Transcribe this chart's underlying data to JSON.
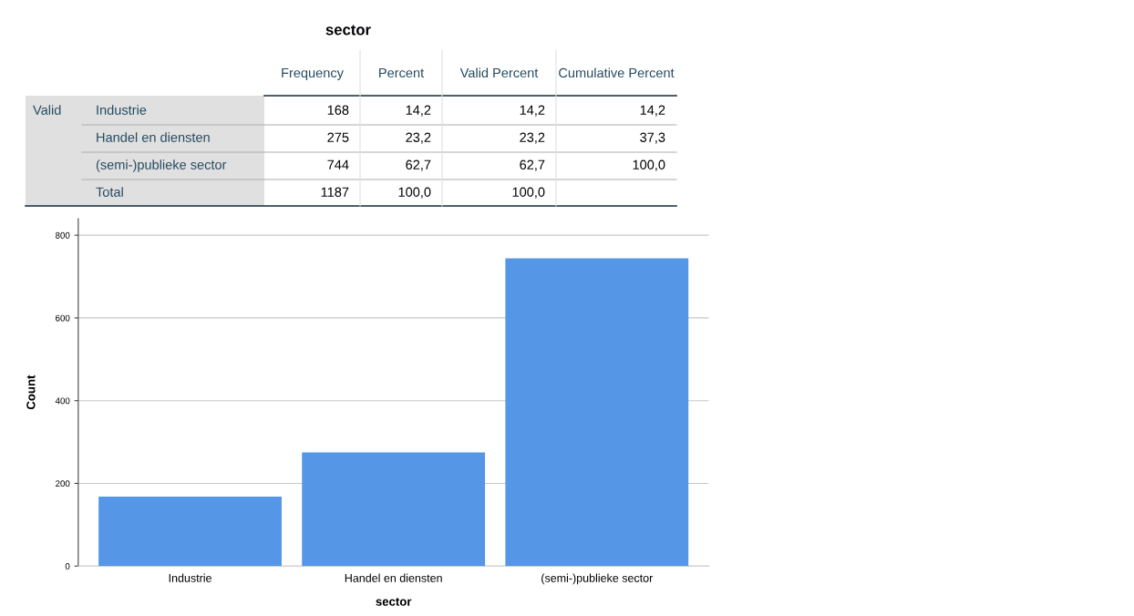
{
  "chart_data": [
    {
      "type": "other",
      "title": "sector",
      "categories": [
        "Frequency",
        "Percent",
        "Valid Percent",
        "Cumulative Percent"
      ],
      "y_categories": [
        "Industrie",
        "Handel en diensten",
        "(semi-)publieke sector",
        "Total"
      ],
      "annotations": [
        "Valid"
      ],
      "cell_labels": [
        [
          "168",
          "14,2",
          "14,2",
          "14,2"
        ],
        [
          "275",
          "23,2",
          "23,2",
          "37,3"
        ],
        [
          "744",
          "62,7",
          "62,7",
          "100,0"
        ],
        [
          "1187",
          "100,0",
          "100,0",
          null
        ]
      ]
    },
    {
      "type": "bar",
      "xlabel": "sector",
      "ylabel": "Count",
      "categories": [
        "Industrie",
        "Handel en diensten",
        "(semi-)publieke sector"
      ],
      "values": [
        168,
        275,
        744
      ],
      "color": "#5596e6",
      "ylim": [
        0,
        840
      ],
      "yticks": [
        0,
        200,
        400,
        600,
        800
      ],
      "grid": "y"
    }
  ]
}
